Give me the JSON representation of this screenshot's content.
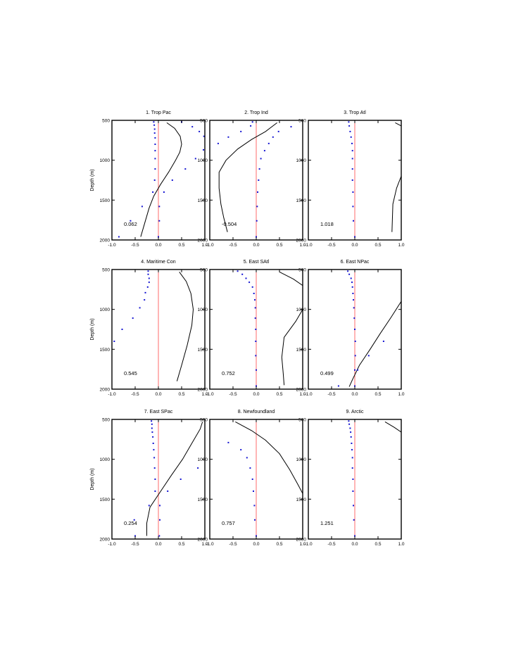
{
  "colors": {
    "zero_line": "#ff6b6b",
    "points": "#1414d2",
    "curve": "#000000",
    "axis": "#000000"
  },
  "chart_data": [
    {
      "type": "scatter",
      "title": "1. Trop Pac",
      "annotation": "0.062",
      "ylabel": "Depth (m)",
      "xlim": [
        -1.0,
        1.0
      ],
      "ylim": [
        2000,
        500
      ],
      "xticks": [
        "-1.0",
        "-0.5",
        "0.0",
        "0.5",
        "1.0"
      ],
      "yticks": [
        "500",
        "1000",
        "1500",
        "2000"
      ],
      "points": [
        [
          -0.1,
          520
        ],
        [
          -0.09,
          560
        ],
        [
          -0.08,
          610
        ],
        [
          -0.08,
          660
        ],
        [
          -0.07,
          720
        ],
        [
          -0.07,
          800
        ],
        [
          -0.07,
          880
        ],
        [
          -0.07,
          980
        ],
        [
          -0.07,
          1110
        ],
        [
          -0.08,
          1250
        ],
        [
          -0.12,
          1400
        ],
        [
          -0.35,
          1580
        ],
        [
          -0.6,
          1760
        ],
        [
          -0.85,
          1960
        ],
        [
          0.5,
          520
        ],
        [
          0.73,
          580
        ],
        [
          0.88,
          640
        ],
        [
          0.98,
          700
        ],
        [
          0.97,
          870
        ],
        [
          0.8,
          980
        ],
        [
          0.58,
          1110
        ],
        [
          0.3,
          1250
        ],
        [
          0.12,
          1400
        ],
        [
          0.02,
          1580
        ],
        [
          0.02,
          1760
        ],
        [
          0.0,
          1960
        ]
      ],
      "curve": [
        [
          0.18,
          530
        ],
        [
          0.35,
          600
        ],
        [
          0.47,
          700
        ],
        [
          0.5,
          800
        ],
        [
          0.46,
          900
        ],
        [
          0.37,
          1000
        ],
        [
          0.22,
          1150
        ],
        [
          0.05,
          1300
        ],
        [
          -0.1,
          1450
        ],
        [
          -0.2,
          1600
        ],
        [
          -0.3,
          1800
        ],
        [
          -0.38,
          1960
        ]
      ]
    },
    {
      "type": "scatter",
      "title": "2. Trop Ind",
      "annotation": "-0.504",
      "ylabel": "",
      "xlim": [
        -1.0,
        1.0
      ],
      "ylim": [
        2000,
        500
      ],
      "xticks": [
        "-1.0",
        "-0.5",
        "0.0",
        "0.5",
        "1.0"
      ],
      "yticks": [
        "500",
        "1000",
        "1500",
        "2000"
      ],
      "points": [
        [
          -0.08,
          520
        ],
        [
          -0.12,
          570
        ],
        [
          -0.33,
          640
        ],
        [
          -0.6,
          710
        ],
        [
          -0.82,
          790
        ],
        [
          0.75,
          580
        ],
        [
          0.48,
          640
        ],
        [
          0.36,
          710
        ],
        [
          0.27,
          790
        ],
        [
          0.18,
          880
        ],
        [
          0.1,
          980
        ],
        [
          0.07,
          1110
        ],
        [
          0.05,
          1250
        ],
        [
          0.03,
          1400
        ],
        [
          0.02,
          1580
        ],
        [
          0.01,
          1760
        ],
        [
          0.0,
          1960
        ]
      ],
      "curve": [
        [
          0.45,
          530
        ],
        [
          0.2,
          640
        ],
        [
          -0.1,
          740
        ],
        [
          -0.4,
          860
        ],
        [
          -0.65,
          1000
        ],
        [
          -0.8,
          1150
        ],
        [
          -0.8,
          1350
        ],
        [
          -0.76,
          1550
        ],
        [
          -0.7,
          1720
        ],
        [
          -0.62,
          1900
        ]
      ]
    },
    {
      "type": "scatter",
      "title": "3. Trop Atl",
      "annotation": "1.018",
      "ylabel": "",
      "xlim": [
        -1.0,
        1.0
      ],
      "ylim": [
        2000,
        500
      ],
      "xticks": [
        "-1.0",
        "-0.5",
        "0.0",
        "0.5",
        "1.0"
      ],
      "yticks": [
        "500",
        "1000",
        "1500",
        "2000"
      ],
      "points": [
        [
          -0.13,
          520
        ],
        [
          -0.12,
          570
        ],
        [
          -0.1,
          640
        ],
        [
          -0.08,
          710
        ],
        [
          -0.06,
          790
        ],
        [
          -0.05,
          880
        ],
        [
          -0.05,
          980
        ],
        [
          -0.05,
          1110
        ],
        [
          -0.05,
          1250
        ],
        [
          -0.04,
          1400
        ],
        [
          -0.04,
          1580
        ],
        [
          -0.03,
          1760
        ],
        [
          0.0,
          1960
        ]
      ],
      "curve_segments": [
        [
          [
            0.87,
            530
          ],
          [
            1.0,
            570
          ]
        ],
        [
          [
            1.0,
            1200
          ],
          [
            0.9,
            1350
          ],
          [
            0.82,
            1550
          ],
          [
            0.8,
            1900
          ]
        ]
      ]
    },
    {
      "type": "scatter",
      "title": "4. Maritime Con",
      "annotation": "0.545",
      "ylabel": "Depth (m)",
      "xlim": [
        -1.0,
        1.0
      ],
      "ylim": [
        2000,
        500
      ],
      "xticks": [
        "-1.0",
        "-0.5",
        "0.0",
        "0.5",
        "1.0"
      ],
      "yticks": [
        "500",
        "1000",
        "1500",
        "2000"
      ],
      "points": [
        [
          -0.22,
          520
        ],
        [
          -0.22,
          560
        ],
        [
          -0.2,
          610
        ],
        [
          -0.2,
          660
        ],
        [
          -0.23,
          720
        ],
        [
          -0.28,
          790
        ],
        [
          -0.3,
          880
        ],
        [
          -0.4,
          980
        ],
        [
          -0.55,
          1110
        ],
        [
          -0.78,
          1250
        ],
        [
          -0.95,
          1400
        ]
      ],
      "curve": [
        [
          0.45,
          530
        ],
        [
          0.6,
          650
        ],
        [
          0.7,
          800
        ],
        [
          0.75,
          1000
        ],
        [
          0.72,
          1200
        ],
        [
          0.62,
          1450
        ],
        [
          0.5,
          1700
        ],
        [
          0.4,
          1900
        ]
      ]
    },
    {
      "type": "scatter",
      "title": "5. East SAtl",
      "annotation": "0.752",
      "ylabel": "",
      "xlim": [
        -1.0,
        1.0
      ],
      "ylim": [
        2000,
        500
      ],
      "xticks": [
        "-1.0",
        "-0.5",
        "0.0",
        "0.5",
        "1.0"
      ],
      "yticks": [
        "500",
        "1000",
        "1500",
        "2000"
      ],
      "points": [
        [
          -0.4,
          520
        ],
        [
          -0.3,
          560
        ],
        [
          -0.22,
          610
        ],
        [
          -0.15,
          660
        ],
        [
          -0.08,
          720
        ],
        [
          -0.05,
          800
        ],
        [
          -0.03,
          880
        ],
        [
          -0.02,
          980
        ],
        [
          -0.02,
          1110
        ],
        [
          -0.01,
          1250
        ],
        [
          -0.01,
          1400
        ],
        [
          -0.01,
          1580
        ],
        [
          0.0,
          1760
        ],
        [
          0.0,
          1960
        ]
      ],
      "curve_segments": [
        [
          [
            0.5,
            530
          ],
          [
            0.8,
            620
          ],
          [
            1.0,
            700
          ]
        ],
        [
          [
            1.0,
            1000
          ],
          [
            0.85,
            1150
          ],
          [
            0.6,
            1350
          ],
          [
            0.55,
            1600
          ],
          [
            0.58,
            1800
          ],
          [
            0.6,
            1950
          ]
        ]
      ]
    },
    {
      "type": "scatter",
      "title": "6. East NPac",
      "annotation": "0.499",
      "ylabel": "",
      "xlim": [
        -1.0,
        1.0
      ],
      "ylim": [
        2000,
        500
      ],
      "xticks": [
        "-1.0",
        "-0.5",
        "0.0",
        "0.5",
        "1.0"
      ],
      "yticks": [
        "500",
        "1000",
        "1500",
        "2000"
      ],
      "points": [
        [
          -0.15,
          520
        ],
        [
          -0.12,
          560
        ],
        [
          -0.08,
          610
        ],
        [
          -0.06,
          660
        ],
        [
          -0.05,
          720
        ],
        [
          -0.04,
          800
        ],
        [
          -0.03,
          880
        ],
        [
          -0.02,
          980
        ],
        [
          -0.01,
          1110
        ],
        [
          0.0,
          1250
        ],
        [
          0.01,
          1400
        ],
        [
          0.01,
          1580
        ],
        [
          0.0,
          1760
        ],
        [
          -0.35,
          1960
        ],
        [
          0.62,
          1400
        ],
        [
          0.3,
          1580
        ],
        [
          0.06,
          1760
        ],
        [
          0.0,
          1960
        ]
      ],
      "curve": [
        [
          1.0,
          900
        ],
        [
          0.78,
          1100
        ],
        [
          0.55,
          1300
        ],
        [
          0.33,
          1500
        ],
        [
          0.1,
          1700
        ],
        [
          -0.05,
          1880
        ],
        [
          -0.12,
          1970
        ]
      ]
    },
    {
      "type": "scatter",
      "title": "7. East SPac",
      "annotation": "0.254",
      "ylabel": "Depth (m)",
      "xlim": [
        -1.0,
        1.0
      ],
      "ylim": [
        2000,
        500
      ],
      "xticks": [
        "-1.0",
        "-0.5",
        "0.0",
        "0.5",
        "1.0"
      ],
      "yticks": [
        "500",
        "1000",
        "1500",
        "2000"
      ],
      "points": [
        [
          -0.15,
          520
        ],
        [
          -0.14,
          560
        ],
        [
          -0.14,
          610
        ],
        [
          -0.13,
          660
        ],
        [
          -0.12,
          720
        ],
        [
          -0.11,
          800
        ],
        [
          -0.1,
          880
        ],
        [
          -0.09,
          980
        ],
        [
          -0.08,
          1110
        ],
        [
          -0.07,
          1250
        ],
        [
          -0.07,
          1400
        ],
        [
          -0.2,
          1580
        ],
        [
          -0.52,
          1760
        ],
        [
          -0.5,
          1960
        ],
        [
          0.85,
          1110
        ],
        [
          0.48,
          1250
        ],
        [
          0.2,
          1400
        ],
        [
          0.03,
          1580
        ],
        [
          0.03,
          1760
        ],
        [
          0.02,
          1960
        ]
      ],
      "curve": [
        [
          0.95,
          530
        ],
        [
          0.9,
          620
        ],
        [
          0.72,
          800
        ],
        [
          0.52,
          1000
        ],
        [
          0.28,
          1200
        ],
        [
          0.05,
          1400
        ],
        [
          -0.18,
          1600
        ],
        [
          -0.25,
          1800
        ],
        [
          -0.25,
          1960
        ]
      ]
    },
    {
      "type": "scatter",
      "title": "8. Newfoundland",
      "annotation": "0.757",
      "ylabel": "",
      "xlim": [
        -1.0,
        1.0
      ],
      "ylim": [
        2000,
        500
      ],
      "xticks": [
        "-1.0",
        "-0.5",
        "0.0",
        "0.5",
        "1.0"
      ],
      "yticks": [
        "500",
        "1000",
        "1500",
        "2000"
      ],
      "points": [
        [
          -0.6,
          790
        ],
        [
          -0.33,
          880
        ],
        [
          -0.2,
          980
        ],
        [
          -0.13,
          1110
        ],
        [
          -0.08,
          1250
        ],
        [
          -0.06,
          1400
        ],
        [
          -0.04,
          1580
        ],
        [
          -0.03,
          1760
        ],
        [
          0.0,
          1960
        ]
      ],
      "curve": [
        [
          -0.45,
          530
        ],
        [
          -0.1,
          640
        ],
        [
          0.2,
          760
        ],
        [
          0.5,
          930
        ],
        [
          0.72,
          1130
        ],
        [
          0.9,
          1320
        ],
        [
          1.0,
          1430
        ]
      ]
    },
    {
      "type": "scatter",
      "title": "9. Arctic",
      "annotation": "1.251",
      "ylabel": "",
      "xlim": [
        -1.0,
        1.0
      ],
      "ylim": [
        2000,
        500
      ],
      "xticks": [
        "-1.0",
        "-0.5",
        "0.0",
        "0.5",
        "1.0"
      ],
      "yticks": [
        "500",
        "1000",
        "1500",
        "2000"
      ],
      "points": [
        [
          -0.13,
          520
        ],
        [
          -0.12,
          560
        ],
        [
          -0.1,
          610
        ],
        [
          -0.09,
          660
        ],
        [
          -0.08,
          720
        ],
        [
          -0.07,
          800
        ],
        [
          -0.06,
          880
        ],
        [
          -0.05,
          980
        ],
        [
          -0.05,
          1110
        ],
        [
          -0.04,
          1250
        ],
        [
          -0.04,
          1400
        ],
        [
          -0.03,
          1580
        ],
        [
          -0.02,
          1760
        ],
        [
          0.0,
          1960
        ]
      ],
      "curve": [
        [
          0.65,
          530
        ],
        [
          0.85,
          600
        ],
        [
          1.0,
          660
        ]
      ]
    }
  ]
}
